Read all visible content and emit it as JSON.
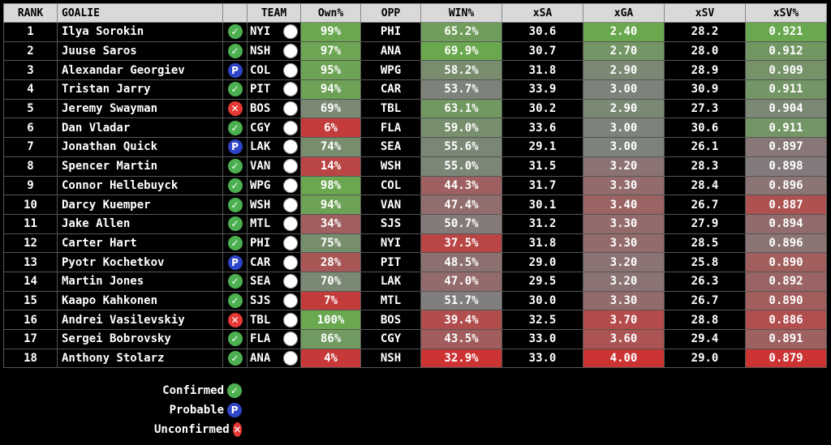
{
  "columns": [
    "RANK",
    "GOALIE",
    "",
    "TEAM",
    "Own%",
    "OPP",
    "WIN%",
    "xSA",
    "xGA",
    "xSV",
    "xSV%"
  ],
  "status_glyphs": {
    "Confirmed": "✓",
    "Probable": "P",
    "Unconfirmed": "✕"
  },
  "rows": [
    {
      "rank": "1",
      "goalie": "Ilya Sorokin",
      "status": "Confirmed",
      "team": "NYI",
      "own": "99%",
      "opp": "PHI",
      "win": "65.2%",
      "xsa": "30.6",
      "xga": "2.40",
      "xsv": "28.2",
      "xsvp": "0.921"
    },
    {
      "rank": "2",
      "goalie": "Juuse Saros",
      "status": "Confirmed",
      "team": "NSH",
      "own": "97%",
      "opp": "ANA",
      "win": "69.9%",
      "xsa": "30.7",
      "xga": "2.70",
      "xsv": "28.0",
      "xsvp": "0.912"
    },
    {
      "rank": "3",
      "goalie": "Alexandar Georgiev",
      "status": "Probable",
      "team": "COL",
      "own": "95%",
      "opp": "WPG",
      "win": "58.2%",
      "xsa": "31.8",
      "xga": "2.90",
      "xsv": "28.9",
      "xsvp": "0.909"
    },
    {
      "rank": "4",
      "goalie": "Tristan Jarry",
      "status": "Confirmed",
      "team": "PIT",
      "own": "94%",
      "opp": "CAR",
      "win": "53.7%",
      "xsa": "33.9",
      "xga": "3.00",
      "xsv": "30.9",
      "xsvp": "0.911"
    },
    {
      "rank": "5",
      "goalie": "Jeremy Swayman",
      "status": "Unconfirmed",
      "team": "BOS",
      "own": "69%",
      "opp": "TBL",
      "win": "63.1%",
      "xsa": "30.2",
      "xga": "2.90",
      "xsv": "27.3",
      "xsvp": "0.904"
    },
    {
      "rank": "6",
      "goalie": "Dan Vladar",
      "status": "Confirmed",
      "team": "CGY",
      "own": "6%",
      "opp": "FLA",
      "win": "59.0%",
      "xsa": "33.6",
      "xga": "3.00",
      "xsv": "30.6",
      "xsvp": "0.911"
    },
    {
      "rank": "7",
      "goalie": "Jonathan Quick",
      "status": "Probable",
      "team": "LAK",
      "own": "74%",
      "opp": "SEA",
      "win": "55.6%",
      "xsa": "29.1",
      "xga": "3.00",
      "xsv": "26.1",
      "xsvp": "0.897"
    },
    {
      "rank": "8",
      "goalie": "Spencer Martin",
      "status": "Confirmed",
      "team": "VAN",
      "own": "14%",
      "opp": "WSH",
      "win": "55.0%",
      "xsa": "31.5",
      "xga": "3.20",
      "xsv": "28.3",
      "xsvp": "0.898"
    },
    {
      "rank": "9",
      "goalie": "Connor Hellebuyck",
      "status": "Confirmed",
      "team": "WPG",
      "own": "98%",
      "opp": "COL",
      "win": "44.3%",
      "xsa": "31.7",
      "xga": "3.30",
      "xsv": "28.4",
      "xsvp": "0.896"
    },
    {
      "rank": "10",
      "goalie": "Darcy Kuemper",
      "status": "Confirmed",
      "team": "WSH",
      "own": "94%",
      "opp": "VAN",
      "win": "47.4%",
      "xsa": "30.1",
      "xga": "3.40",
      "xsv": "26.7",
      "xsvp": "0.887"
    },
    {
      "rank": "11",
      "goalie": "Jake Allen",
      "status": "Confirmed",
      "team": "MTL",
      "own": "34%",
      "opp": "SJS",
      "win": "50.7%",
      "xsa": "31.2",
      "xga": "3.30",
      "xsv": "27.9",
      "xsvp": "0.894"
    },
    {
      "rank": "12",
      "goalie": "Carter Hart",
      "status": "Confirmed",
      "team": "PHI",
      "own": "75%",
      "opp": "NYI",
      "win": "37.5%",
      "xsa": "31.8",
      "xga": "3.30",
      "xsv": "28.5",
      "xsvp": "0.896"
    },
    {
      "rank": "13",
      "goalie": "Pyotr Kochetkov",
      "status": "Probable",
      "team": "CAR",
      "own": "28%",
      "opp": "PIT",
      "win": "48.5%",
      "xsa": "29.0",
      "xga": "3.20",
      "xsv": "25.8",
      "xsvp": "0.890"
    },
    {
      "rank": "14",
      "goalie": "Martin Jones",
      "status": "Confirmed",
      "team": "SEA",
      "own": "70%",
      "opp": "LAK",
      "win": "47.0%",
      "xsa": "29.5",
      "xga": "3.20",
      "xsv": "26.3",
      "xsvp": "0.892"
    },
    {
      "rank": "15",
      "goalie": "Kaapo Kahkonen",
      "status": "Confirmed",
      "team": "SJS",
      "own": "7%",
      "opp": "MTL",
      "win": "51.7%",
      "xsa": "30.0",
      "xga": "3.30",
      "xsv": "26.7",
      "xsvp": "0.890"
    },
    {
      "rank": "16",
      "goalie": "Andrei Vasilevskiy",
      "status": "Unconfirmed",
      "team": "TBL",
      "own": "100%",
      "opp": "BOS",
      "win": "39.4%",
      "xsa": "32.5",
      "xga": "3.70",
      "xsv": "28.8",
      "xsvp": "0.886"
    },
    {
      "rank": "17",
      "goalie": "Sergei Bobrovsky",
      "status": "Confirmed",
      "team": "FLA",
      "own": "86%",
      "opp": "CGY",
      "win": "43.5%",
      "xsa": "33.0",
      "xga": "3.60",
      "xsv": "29.4",
      "xsvp": "0.891"
    },
    {
      "rank": "18",
      "goalie": "Anthony Stolarz",
      "status": "Confirmed",
      "team": "ANA",
      "own": "4%",
      "opp": "NSH",
      "win": "32.9%",
      "xsa": "33.0",
      "xga": "4.00",
      "xsv": "29.0",
      "xsvp": "0.879"
    }
  ],
  "legend": [
    {
      "label": "Confirmed",
      "status": "Confirmed"
    },
    {
      "label": "Probable",
      "status": "Probable"
    },
    {
      "label": "Unconfirmed",
      "status": "Unconfirmed"
    }
  ],
  "colors": {
    "high": "#6aa84f",
    "mid": "#7f7f7f",
    "low": "#cc3333",
    "header_bg": "#d9d9d9",
    "bg": "#000000"
  }
}
